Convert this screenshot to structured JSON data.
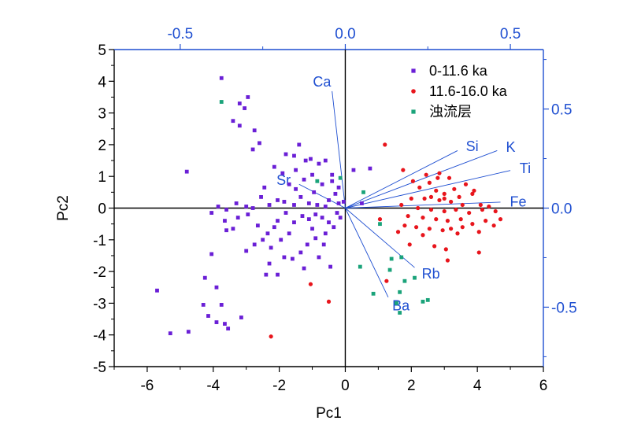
{
  "chart_data": {
    "type": "scatter",
    "title": "",
    "xlabel": "Pc1",
    "ylabel": "Pc2",
    "xlim": [
      -7,
      6
    ],
    "ylim": [
      -5,
      5
    ],
    "x_ticks": [
      "-6",
      "-4",
      "-2",
      "0",
      "2",
      "4",
      "6"
    ],
    "y_ticks": [
      "-5",
      "-4",
      "-3",
      "-2",
      "-1",
      "0",
      "1",
      "2",
      "3",
      "4",
      "5"
    ],
    "top_axis": {
      "lim": [
        -0.7,
        0.6
      ],
      "ticks": [
        "-0.5",
        "0.0",
        "0.5"
      ],
      "tick_values": [
        -0.5,
        0,
        0.5
      ]
    },
    "right_axis": {
      "lim": [
        -0.8,
        0.8
      ],
      "ticks": [
        "0.5",
        "0.0",
        "-0.5"
      ],
      "tick_values": [
        0.5,
        0,
        -0.5
      ]
    },
    "grid": false,
    "legend_position": "top-right",
    "colors": {
      "axis_blue": "#1f4fd1",
      "series1": "#6a1fd6",
      "series2": "#e8151c",
      "series3": "#1aa37a"
    },
    "series": [
      {
        "name": "0-11.6 ka",
        "marker": "square",
        "color": "#6a1fd6",
        "points": [
          [
            -3.75,
            4.1
          ],
          [
            -2.95,
            3.5
          ],
          [
            -3.2,
            3.3
          ],
          [
            -3.05,
            3.15
          ],
          [
            -3.4,
            2.75
          ],
          [
            -3.2,
            2.6
          ],
          [
            -2.75,
            2.45
          ],
          [
            -2.6,
            2.05
          ],
          [
            -1.4,
            2.0
          ],
          [
            -2.8,
            1.85
          ],
          [
            -1.8,
            1.7
          ],
          [
            -1.2,
            1.5
          ],
          [
            -0.6,
            1.5
          ],
          [
            -1.5,
            1.2
          ],
          [
            -1.05,
            1.55
          ],
          [
            -0.8,
            1.4
          ],
          [
            -2.15,
            1.3
          ],
          [
            -1.9,
            1.1
          ],
          [
            -1.0,
            1.05
          ],
          [
            -4.8,
            1.15
          ],
          [
            -0.4,
            0.85
          ],
          [
            -0.2,
            0.65
          ],
          [
            0.25,
            1.2
          ],
          [
            0.75,
            1.25
          ],
          [
            -1.7,
            0.75
          ],
          [
            -1.5,
            0.6
          ],
          [
            -1.25,
            0.9
          ],
          [
            -1.35,
            0.35
          ],
          [
            -0.95,
            0.5
          ],
          [
            -0.7,
            0.75
          ],
          [
            -0.5,
            0.25
          ],
          [
            -0.3,
            0.45
          ],
          [
            -0.2,
            0.15
          ],
          [
            -0.05,
            0.2
          ],
          [
            -0.6,
            0.05
          ],
          [
            -0.85,
            0.1
          ],
          [
            -1.1,
            0.15
          ],
          [
            -1.55,
            0.1
          ],
          [
            -1.85,
            0.2
          ],
          [
            -2.05,
            0.25
          ],
          [
            -2.3,
            0.1
          ],
          [
            -2.55,
            0.35
          ],
          [
            -2.8,
            0.0
          ],
          [
            -3.0,
            0.05
          ],
          [
            -3.3,
            0.15
          ],
          [
            -3.6,
            -0.05
          ],
          [
            -3.85,
            0.05
          ],
          [
            -4.05,
            -0.15
          ],
          [
            -3.65,
            -0.4
          ],
          [
            -3.4,
            -0.65
          ],
          [
            -3.6,
            -0.7
          ],
          [
            -2.95,
            -0.2
          ],
          [
            -2.65,
            -0.55
          ],
          [
            -2.35,
            -0.8
          ],
          [
            -2.05,
            -0.4
          ],
          [
            -1.8,
            -0.15
          ],
          [
            -1.55,
            -0.45
          ],
          [
            -1.3,
            -0.25
          ],
          [
            -1.1,
            -0.35
          ],
          [
            -0.9,
            -0.2
          ],
          [
            -0.7,
            -0.3
          ],
          [
            -0.5,
            -0.45
          ],
          [
            -0.25,
            -0.15
          ],
          [
            -1.7,
            -0.8
          ],
          [
            -1.95,
            -1.0
          ],
          [
            -2.25,
            -1.25
          ],
          [
            -2.5,
            -1.0
          ],
          [
            -2.75,
            -1.15
          ],
          [
            -3.0,
            -1.35
          ],
          [
            -2.3,
            -1.75
          ],
          [
            -2.05,
            -2.1
          ],
          [
            -2.4,
            -2.1
          ],
          [
            -1.85,
            -1.55
          ],
          [
            -1.6,
            -1.6
          ],
          [
            -1.35,
            -1.4
          ],
          [
            -1.15,
            -1.15
          ],
          [
            -0.9,
            -0.95
          ],
          [
            -0.6,
            -0.8
          ],
          [
            -0.35,
            -0.6
          ],
          [
            -0.8,
            -1.55
          ],
          [
            -1.25,
            -1.9
          ],
          [
            -0.45,
            -1.85
          ],
          [
            -4.05,
            -1.45
          ],
          [
            -4.25,
            -2.2
          ],
          [
            -3.9,
            -2.5
          ],
          [
            -3.75,
            -3.05
          ],
          [
            -4.15,
            -3.4
          ],
          [
            -4.3,
            -3.05
          ],
          [
            -3.9,
            -3.6
          ],
          [
            -3.65,
            -3.65
          ],
          [
            -3.15,
            -3.45
          ],
          [
            -3.55,
            -3.8
          ],
          [
            -4.75,
            -3.9
          ],
          [
            -5.3,
            -3.95
          ],
          [
            -5.7,
            -2.6
          ],
          [
            -0.4,
            1.05
          ],
          [
            0.5,
            0.15
          ],
          [
            -1.55,
            1.65
          ],
          [
            -2.45,
            0.65
          ],
          [
            -0.15,
            -0.3
          ],
          [
            -0.65,
            -1.15
          ],
          [
            -1.0,
            -0.65
          ],
          [
            -2.15,
            -0.6
          ],
          [
            -3.25,
            -0.3
          ]
        ]
      },
      {
        "name": "11.6-16.0 ka",
        "marker": "circle",
        "color": "#e8151c",
        "points": [
          [
            1.2,
            2.0
          ],
          [
            1.75,
            1.2
          ],
          [
            2.45,
            1.05
          ],
          [
            2.85,
            1.1
          ],
          [
            3.15,
            0.95
          ],
          [
            2.05,
            0.85
          ],
          [
            2.55,
            0.8
          ],
          [
            3.3,
            0.6
          ],
          [
            3.65,
            0.75
          ],
          [
            2.25,
            0.65
          ],
          [
            2.75,
            0.55
          ],
          [
            3.0,
            0.45
          ],
          [
            3.45,
            0.35
          ],
          [
            3.85,
            0.45
          ],
          [
            2.0,
            0.3
          ],
          [
            2.4,
            0.3
          ],
          [
            2.85,
            0.25
          ],
          [
            3.2,
            0.2
          ],
          [
            3.55,
            0.1
          ],
          [
            4.1,
            0.1
          ],
          [
            1.7,
            0.1
          ],
          [
            2.2,
            0.0
          ],
          [
            2.6,
            -0.05
          ],
          [
            3.0,
            -0.1
          ],
          [
            3.35,
            -0.05
          ],
          [
            3.75,
            -0.15
          ],
          [
            4.15,
            -0.05
          ],
          [
            4.55,
            -0.1
          ],
          [
            1.9,
            -0.25
          ],
          [
            2.35,
            -0.3
          ],
          [
            2.75,
            -0.35
          ],
          [
            3.1,
            -0.4
          ],
          [
            3.5,
            -0.35
          ],
          [
            3.85,
            -0.5
          ],
          [
            4.25,
            -0.4
          ],
          [
            4.7,
            -0.35
          ],
          [
            1.8,
            -0.55
          ],
          [
            2.15,
            -0.6
          ],
          [
            2.55,
            -0.65
          ],
          [
            2.95,
            -0.7
          ],
          [
            3.4,
            -0.8
          ],
          [
            4.05,
            -0.75
          ],
          [
            4.5,
            -0.55
          ],
          [
            2.7,
            -1.2
          ],
          [
            3.05,
            -1.3
          ],
          [
            1.95,
            -1.15
          ],
          [
            4.05,
            -1.4
          ],
          [
            3.1,
            -1.65
          ],
          [
            3.2,
            -0.65
          ],
          [
            3.55,
            -0.6
          ],
          [
            2.35,
            -0.85
          ],
          [
            2.8,
            0.95
          ],
          [
            3.9,
            0.55
          ],
          [
            1.05,
            -0.35
          ],
          [
            1.6,
            -0.75
          ],
          [
            4.35,
            0.05
          ],
          [
            1.25,
            -2.3
          ],
          [
            -1.05,
            -2.4
          ],
          [
            -0.5,
            -2.95
          ],
          [
            -2.25,
            -4.05
          ],
          [
            3.0,
            0.3
          ],
          [
            2.6,
            0.35
          ]
        ]
      },
      {
        "name": "浊流层",
        "marker": "square",
        "color": "#1aa37a",
        "points": [
          [
            -3.75,
            3.35
          ],
          [
            -0.85,
            0.85
          ],
          [
            -0.15,
            0.95
          ],
          [
            0.55,
            0.5
          ],
          [
            1.05,
            -0.5
          ],
          [
            1.4,
            -1.6
          ],
          [
            1.35,
            -1.95
          ],
          [
            1.7,
            -1.55
          ],
          [
            1.8,
            -2.3
          ],
          [
            2.1,
            -2.2
          ],
          [
            0.85,
            -2.7
          ],
          [
            1.65,
            -2.65
          ],
          [
            1.55,
            -3.0
          ],
          [
            2.35,
            -2.95
          ],
          [
            2.5,
            -2.9
          ],
          [
            1.65,
            -3.3
          ],
          [
            0.45,
            -1.85
          ]
        ]
      }
    ],
    "loadings": [
      {
        "label": "Ca",
        "x": -0.04,
        "y": 0.59
      },
      {
        "label": "Sr",
        "x": -0.14,
        "y": 0.12
      },
      {
        "label": "Si",
        "x": 0.34,
        "y": 0.29
      },
      {
        "label": "K",
        "x": 0.46,
        "y": 0.29
      },
      {
        "label": "Ti",
        "x": 0.5,
        "y": 0.19
      },
      {
        "label": "Fe",
        "x": 0.47,
        "y": 0.03
      },
      {
        "label": "Rb",
        "x": 0.21,
        "y": -0.3
      },
      {
        "label": "Ba",
        "x": 0.13,
        "y": -0.45
      }
    ]
  }
}
